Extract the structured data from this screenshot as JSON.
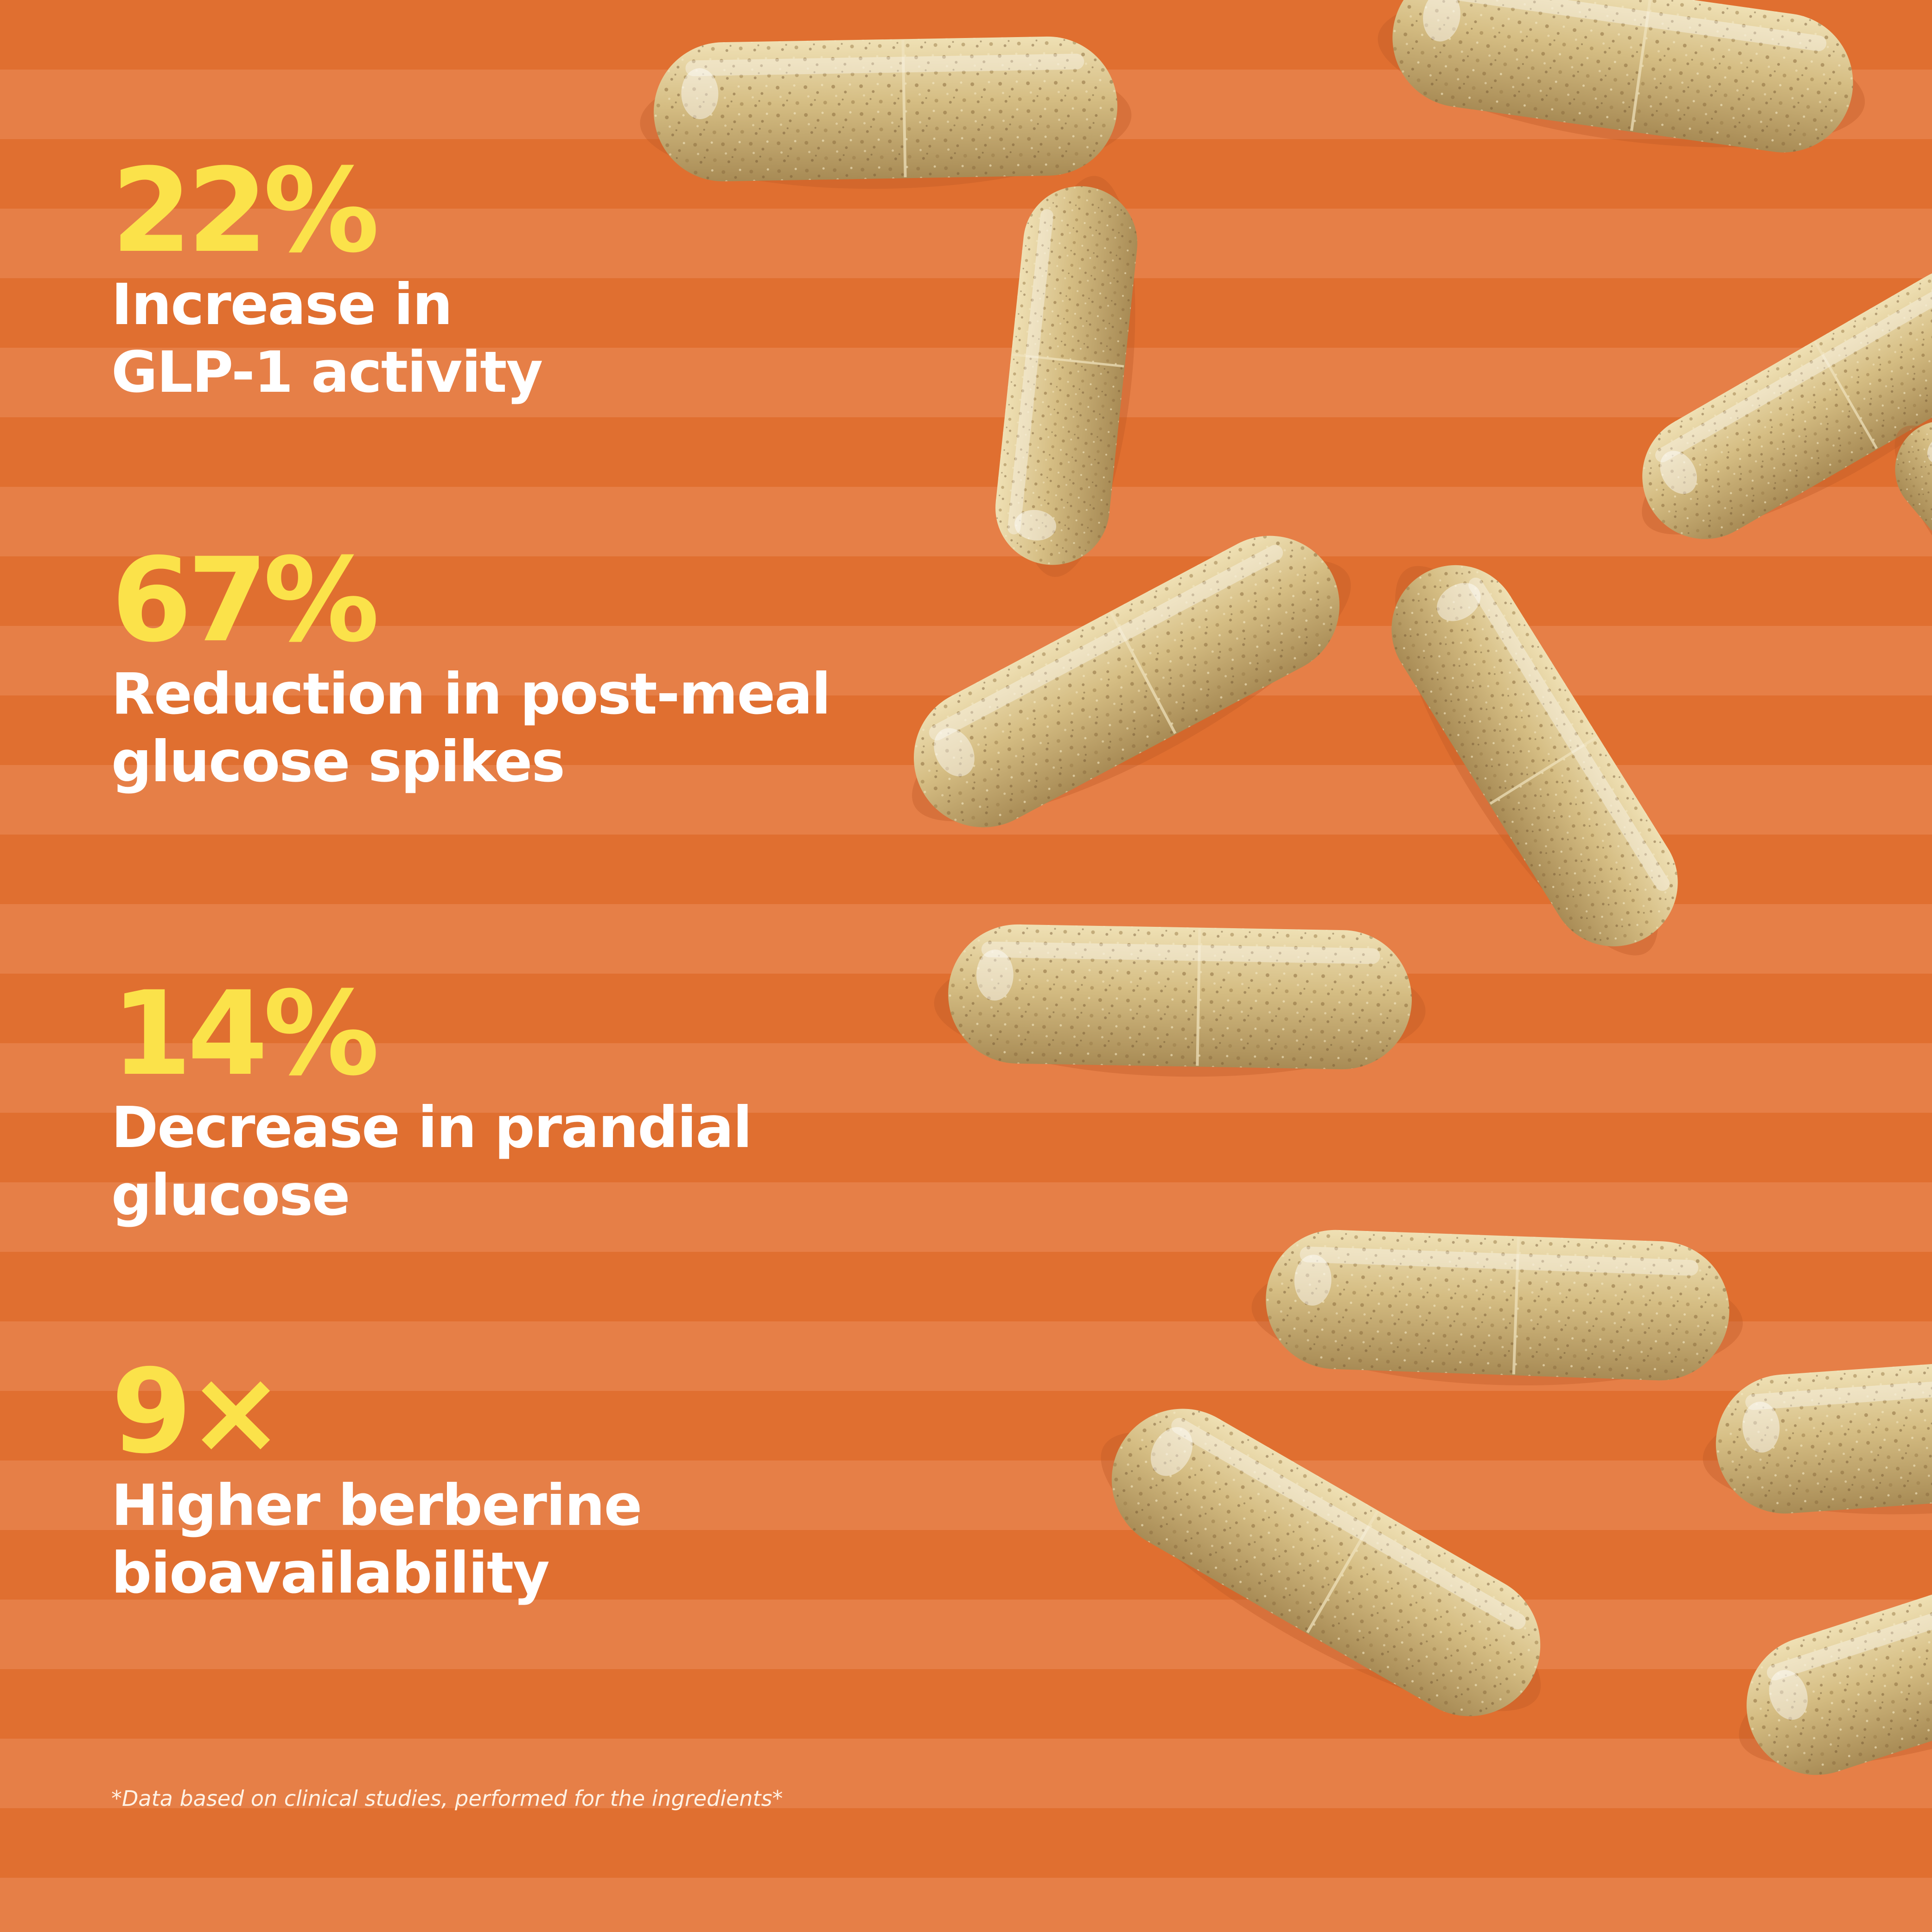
{
  "stats": [
    {
      "value": "22%",
      "label_line1": "Increase in",
      "label_line2": "GLP-1 activity"
    },
    {
      "value": "67%",
      "label_line1": "Reduction in post-meal",
      "label_line2": "glucose spikes"
    },
    {
      "value": "14%",
      "label_line1": "Decrease in prandial",
      "label_line2": "glucose"
    },
    {
      "value": "9×",
      "label_line1": "Higher berberine",
      "label_line2": "bioavailability"
    }
  ],
  "footnote": "*Data based on clinical studies, performed for the ingredients*",
  "colors": {
    "background": "#e06f30",
    "stripe": "#e67f47",
    "stat_value": "#fbe24a",
    "stat_label": "#ffffff",
    "capsule": "#d9c48d"
  }
}
